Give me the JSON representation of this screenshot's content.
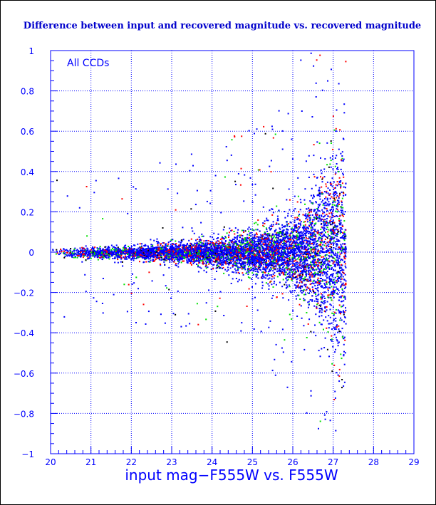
{
  "chart_data": {
    "type": "scatter",
    "title": "Difference between input and recovered magnitude vs. recovered magnitude",
    "xlabel": "input mag−F555W vs. F555W",
    "ylabel": "",
    "annotation": "All CCDs",
    "xlim": [
      20,
      29
    ],
    "ylim": [
      -1,
      1
    ],
    "x_ticks": [
      20,
      21,
      22,
      23,
      24,
      25,
      26,
      27,
      28,
      29
    ],
    "y_ticks": [
      -1,
      -0.8,
      -0.6,
      -0.4,
      -0.2,
      0,
      0.2,
      0.4,
      0.6,
      0.8,
      1
    ],
    "x_tick_labels": [
      "20",
      "21",
      "22",
      "23",
      "24",
      "25",
      "26",
      "27",
      "28",
      "29"
    ],
    "y_tick_labels": [
      "−1",
      "−0.8",
      "−0.6",
      "−0.4",
      "−0.2",
      "0",
      "0.2",
      "0.4",
      "0.6",
      "0.8",
      "1"
    ],
    "grid": true,
    "point_colors": [
      "#0000ff",
      "#ff0000",
      "#00e000",
      "#000000"
    ],
    "envelope": {
      "description_mag": [
        20.0,
        21.0,
        22.0,
        23.0,
        24.0,
        25.0,
        26.0,
        26.5,
        27.0,
        27.3
      ],
      "half_width": [
        0.02,
        0.025,
        0.03,
        0.04,
        0.06,
        0.09,
        0.16,
        0.25,
        0.45,
        0.5
      ],
      "magnitude_cutoff": 27.3
    }
  },
  "colors": {
    "axis": "#0000ff",
    "grid": "#0000ff",
    "title": "#0000cc",
    "background": "#ffffff"
  }
}
